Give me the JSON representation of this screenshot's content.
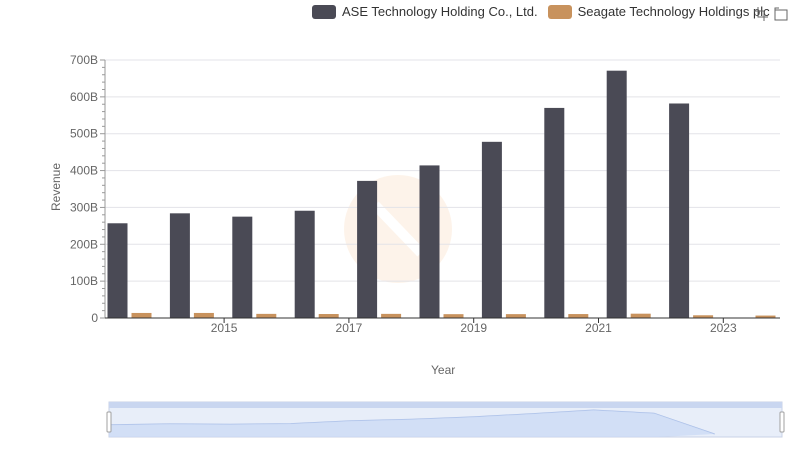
{
  "colors": {
    "ase": "#4a4a55",
    "seagate": "#c8925d",
    "grid": "#e3e3e8",
    "axis": "#999999",
    "text": "#666666"
  },
  "legend": {
    "series_0": "ASE Technology Holding Co., Ltd.",
    "series_1": "Seagate Technology Holdings plc"
  },
  "toolbox": {
    "icons": [
      "zoom-icon",
      "restore-icon"
    ]
  },
  "chart_data": {
    "type": "bar",
    "categories": [
      "2014",
      "2015",
      "2016",
      "2017",
      "2018",
      "2019",
      "2020",
      "2021",
      "2022",
      "2023",
      "2024"
    ],
    "x_tick_labels": [
      "2015",
      "2017",
      "2019",
      "2021",
      "2023"
    ],
    "series": [
      {
        "name": "ASE Technology Holding Co., Ltd.",
        "values": [
          257,
          284,
          275,
          291,
          372,
          414,
          478,
          570,
          671,
          582,
          0
        ]
      },
      {
        "name": "Seagate Technology Holdings plc",
        "values": [
          13.7,
          13.7,
          11.2,
          10.8,
          11.2,
          10.4,
          10.5,
          10.7,
          11.7,
          7.4,
          6.6
        ]
      }
    ],
    "ylim": [
      0,
      700
    ],
    "y_tick_labels": [
      "0",
      "100B",
      "200B",
      "300B",
      "400B",
      "500B",
      "600B",
      "700B"
    ],
    "xlabel": "Year",
    "ylabel": "Revenue",
    "grid": true,
    "legend_position": "top-right",
    "datazoom": {
      "start": 0,
      "end": 100
    }
  }
}
